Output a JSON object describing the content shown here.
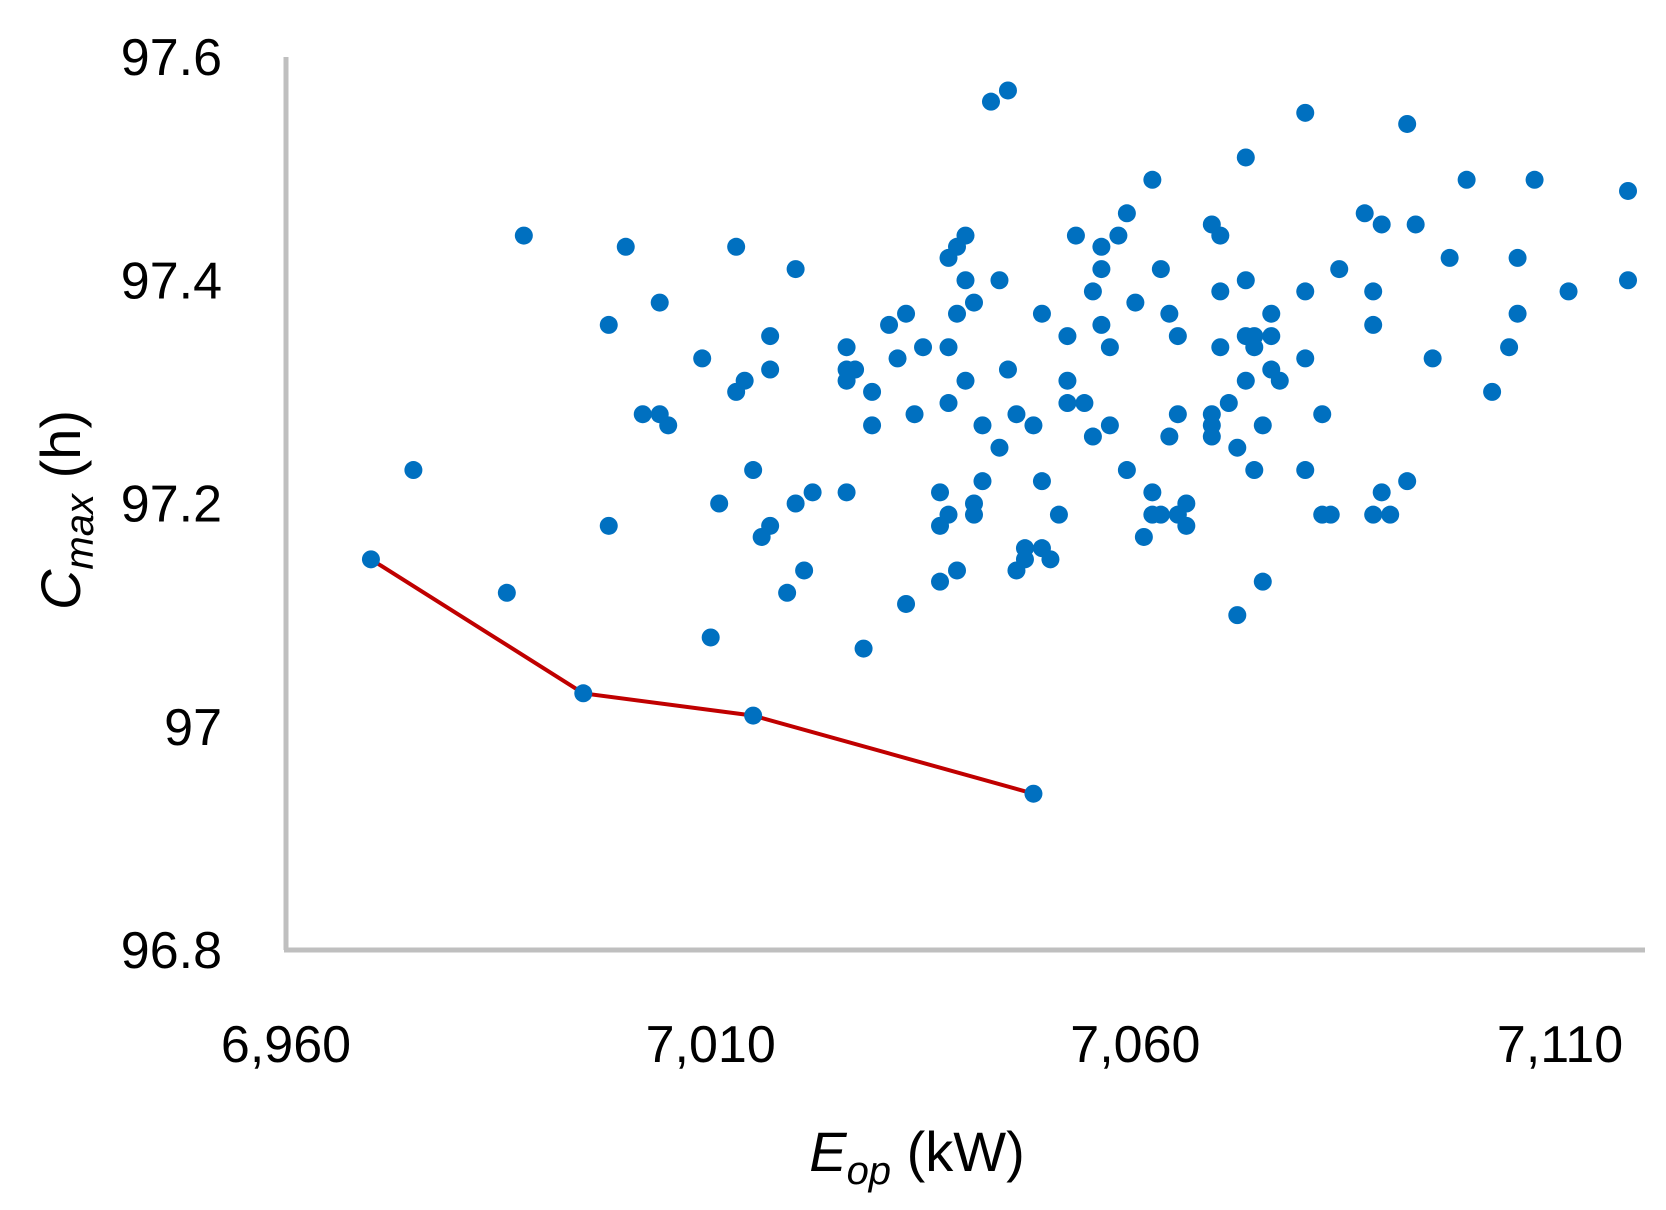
{
  "chart_data": {
    "type": "scatter",
    "title": "",
    "xlabel": {
      "main": "E",
      "sub": "op",
      "unit": " (kW)"
    },
    "ylabel": {
      "main": "C",
      "sub": "max",
      "unit": " (h)"
    },
    "xlim": [
      6960,
      7120
    ],
    "ylim": [
      96.8,
      97.6
    ],
    "x_ticks": [
      6960,
      7010,
      7060,
      7110
    ],
    "x_tick_labels": [
      "6,960",
      "7,010",
      "7,060",
      "7,110"
    ],
    "y_ticks": [
      96.8,
      97.0,
      97.2,
      97.4,
      97.6
    ],
    "y_tick_labels": [
      "96.8",
      "97",
      "97.2",
      "97.4",
      "97.6"
    ],
    "grid": false,
    "legend": "none",
    "colors": {
      "scatter": "#0070c0",
      "pareto": "#c00000",
      "axis": "#bfbfbf"
    },
    "series": [
      {
        "kind": "scatter",
        "points": [
          [
            6975,
            97.23
          ],
          [
            6986,
            97.12
          ],
          [
            6988,
            97.44
          ],
          [
            6998,
            97.36
          ],
          [
            6998,
            97.18
          ],
          [
            7000,
            97.43
          ],
          [
            7002,
            97.28
          ],
          [
            7004,
            97.28
          ],
          [
            7004,
            97.38
          ],
          [
            7005,
            97.27
          ],
          [
            7009,
            97.33
          ],
          [
            7010,
            97.08
          ],
          [
            7011,
            97.2
          ],
          [
            7013,
            97.3
          ],
          [
            7013,
            97.43
          ],
          [
            7014,
            97.31
          ],
          [
            7015,
            97.23
          ],
          [
            7016,
            97.17
          ],
          [
            7017,
            97.35
          ],
          [
            7017,
            97.32
          ],
          [
            7017,
            97.18
          ],
          [
            7019,
            97.12
          ],
          [
            7020,
            97.2
          ],
          [
            7020,
            97.41
          ],
          [
            7021,
            97.14
          ],
          [
            7022,
            97.21
          ],
          [
            7026,
            97.34
          ],
          [
            7026,
            97.31
          ],
          [
            7026,
            97.32
          ],
          [
            7026,
            97.21
          ],
          [
            7027,
            97.32
          ],
          [
            7028,
            97.07
          ],
          [
            7029,
            97.27
          ],
          [
            7029,
            97.3
          ],
          [
            7031,
            97.36
          ],
          [
            7032,
            97.33
          ],
          [
            7033,
            97.37
          ],
          [
            7033,
            97.11
          ],
          [
            7034,
            97.28
          ],
          [
            7035,
            97.34
          ],
          [
            7037,
            97.21
          ],
          [
            7037,
            97.18
          ],
          [
            7037,
            97.13
          ],
          [
            7038,
            97.19
          ],
          [
            7038,
            97.29
          ],
          [
            7038,
            97.34
          ],
          [
            7038,
            97.42
          ],
          [
            7039,
            97.43
          ],
          [
            7039,
            97.14
          ],
          [
            7039,
            97.37
          ],
          [
            7040,
            97.44
          ],
          [
            7040,
            97.4
          ],
          [
            7040,
            97.31
          ],
          [
            7041,
            97.38
          ],
          [
            7041,
            97.2
          ],
          [
            7041,
            97.19
          ],
          [
            7042,
            97.27
          ],
          [
            7042,
            97.22
          ],
          [
            7043,
            97.56
          ],
          [
            7044,
            97.25
          ],
          [
            7044,
            97.4
          ],
          [
            7045,
            97.57
          ],
          [
            7045,
            97.32
          ],
          [
            7046,
            97.14
          ],
          [
            7046,
            97.28
          ],
          [
            7047,
            97.16
          ],
          [
            7047,
            97.15
          ],
          [
            7048,
            97.27
          ],
          [
            7049,
            97.16
          ],
          [
            7049,
            97.22
          ],
          [
            7049,
            97.37
          ],
          [
            7050,
            97.15
          ],
          [
            7051,
            97.19
          ],
          [
            7052,
            97.35
          ],
          [
            7052,
            97.31
          ],
          [
            7052,
            97.29
          ],
          [
            7053,
            97.44
          ],
          [
            7054,
            97.29
          ],
          [
            7055,
            97.39
          ],
          [
            7055,
            97.26
          ],
          [
            7056,
            97.43
          ],
          [
            7056,
            97.36
          ],
          [
            7056,
            97.41
          ],
          [
            7057,
            97.34
          ],
          [
            7057,
            97.27
          ],
          [
            7058,
            97.44
          ],
          [
            7059,
            97.46
          ],
          [
            7059,
            97.23
          ],
          [
            7060,
            97.38
          ],
          [
            7061,
            97.17
          ],
          [
            7062,
            97.49
          ],
          [
            7062,
            97.21
          ],
          [
            7062,
            97.19
          ],
          [
            7063,
            97.41
          ],
          [
            7063,
            97.19
          ],
          [
            7064,
            97.37
          ],
          [
            7064,
            97.26
          ],
          [
            7065,
            97.28
          ],
          [
            7065,
            97.19
          ],
          [
            7065,
            97.35
          ],
          [
            7066,
            97.2
          ],
          [
            7066,
            97.18
          ],
          [
            7069,
            97.45
          ],
          [
            7069,
            97.28
          ],
          [
            7069,
            97.27
          ],
          [
            7069,
            97.26
          ],
          [
            7070,
            97.39
          ],
          [
            7070,
            97.34
          ],
          [
            7070,
            97.44
          ],
          [
            7071,
            97.29
          ],
          [
            7072,
            97.25
          ],
          [
            7072,
            97.1
          ],
          [
            7073,
            97.51
          ],
          [
            7073,
            97.31
          ],
          [
            7073,
            97.4
          ],
          [
            7073,
            97.35
          ],
          [
            7074,
            97.23
          ],
          [
            7074,
            97.35
          ],
          [
            7074,
            97.34
          ],
          [
            7075,
            97.27
          ],
          [
            7075,
            97.13
          ],
          [
            7076,
            97.32
          ],
          [
            7076,
            97.35
          ],
          [
            7076,
            97.37
          ],
          [
            7077,
            97.31
          ],
          [
            7080,
            97.23
          ],
          [
            7080,
            97.33
          ],
          [
            7080,
            97.39
          ],
          [
            7080,
            97.55
          ],
          [
            7082,
            97.28
          ],
          [
            7082,
            97.19
          ],
          [
            7083,
            97.19
          ],
          [
            7084,
            97.41
          ],
          [
            7087,
            97.46
          ],
          [
            7088,
            97.39
          ],
          [
            7088,
            97.36
          ],
          [
            7088,
            97.19
          ],
          [
            7089,
            97.45
          ],
          [
            7089,
            97.21
          ],
          [
            7090,
            97.19
          ],
          [
            7092,
            97.54
          ],
          [
            7092,
            97.22
          ],
          [
            7093,
            97.45
          ],
          [
            7095,
            97.33
          ],
          [
            7097,
            97.42
          ],
          [
            7099,
            97.49
          ],
          [
            7102,
            97.3
          ],
          [
            7104,
            97.34
          ],
          [
            7105,
            97.42
          ],
          [
            7105,
            97.37
          ],
          [
            7107,
            97.49
          ],
          [
            7111,
            97.39
          ],
          [
            7118,
            97.48
          ],
          [
            7118,
            97.4
          ]
        ]
      },
      {
        "kind": "line",
        "points": [
          [
            6970,
            97.15
          ],
          [
            6995,
            97.03
          ],
          [
            7015,
            97.01
          ],
          [
            7048,
            96.94
          ]
        ]
      }
    ]
  }
}
